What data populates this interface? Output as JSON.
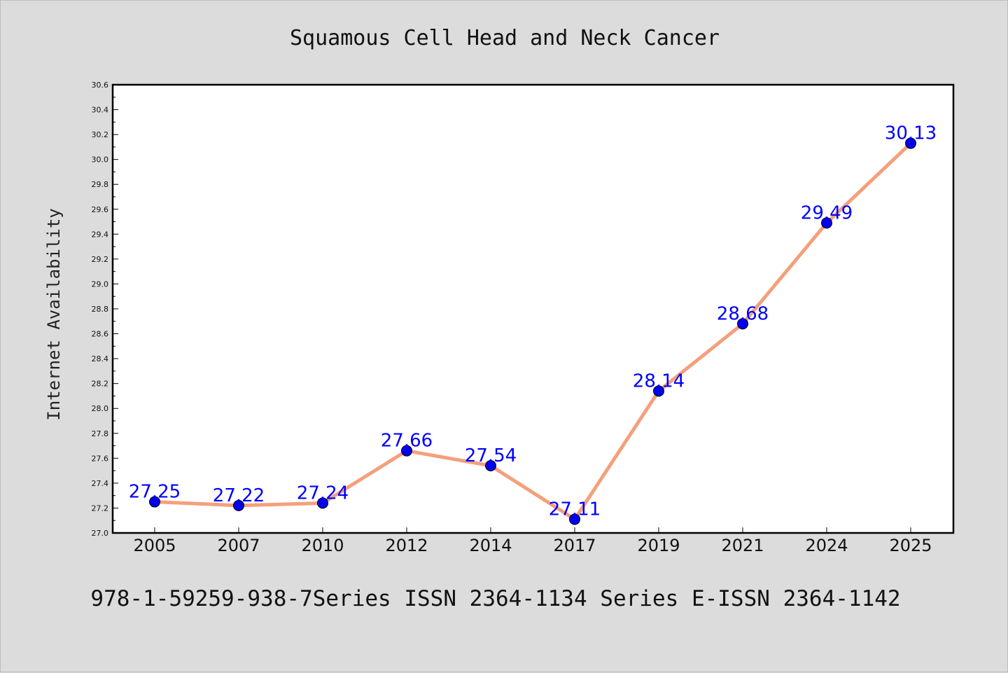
{
  "chart_data": {
    "type": "line",
    "title": "Squamous Cell Head and Neck Cancer",
    "xlabel": "",
    "ylabel": "Internet Availability",
    "categories": [
      "2005",
      "2007",
      "2010",
      "2012",
      "2014",
      "2017",
      "2019",
      "2021",
      "2024",
      "2025"
    ],
    "series": [
      {
        "values": [
          27.25,
          27.22,
          27.24,
          27.66,
          27.54,
          27.11,
          28.14,
          28.68,
          29.49,
          30.13
        ],
        "data_labels": [
          "27.25",
          "27.22",
          "27.24",
          "27.66",
          "27.54",
          "27.11",
          "28.14",
          "28.68",
          "29.49",
          "30.13"
        ],
        "line_color": "#f4a07c",
        "marker_color": "#0000ee"
      }
    ],
    "ylim": [
      27.0,
      30.6
    ],
    "yticks": [
      "27.0",
      "27.2",
      "27.4",
      "27.6",
      "27.8",
      "28.0",
      "28.2",
      "28.4",
      "28.6",
      "28.8",
      "29.0",
      "29.2",
      "29.4",
      "29.6",
      "29.8",
      "30.0",
      "30.2",
      "30.4",
      "30.6"
    ],
    "grid": false,
    "label_color": "#0000ff"
  },
  "footnote": "978-1-59259-938-7Series ISSN 2364-1134 Series E-ISSN 2364-1142"
}
